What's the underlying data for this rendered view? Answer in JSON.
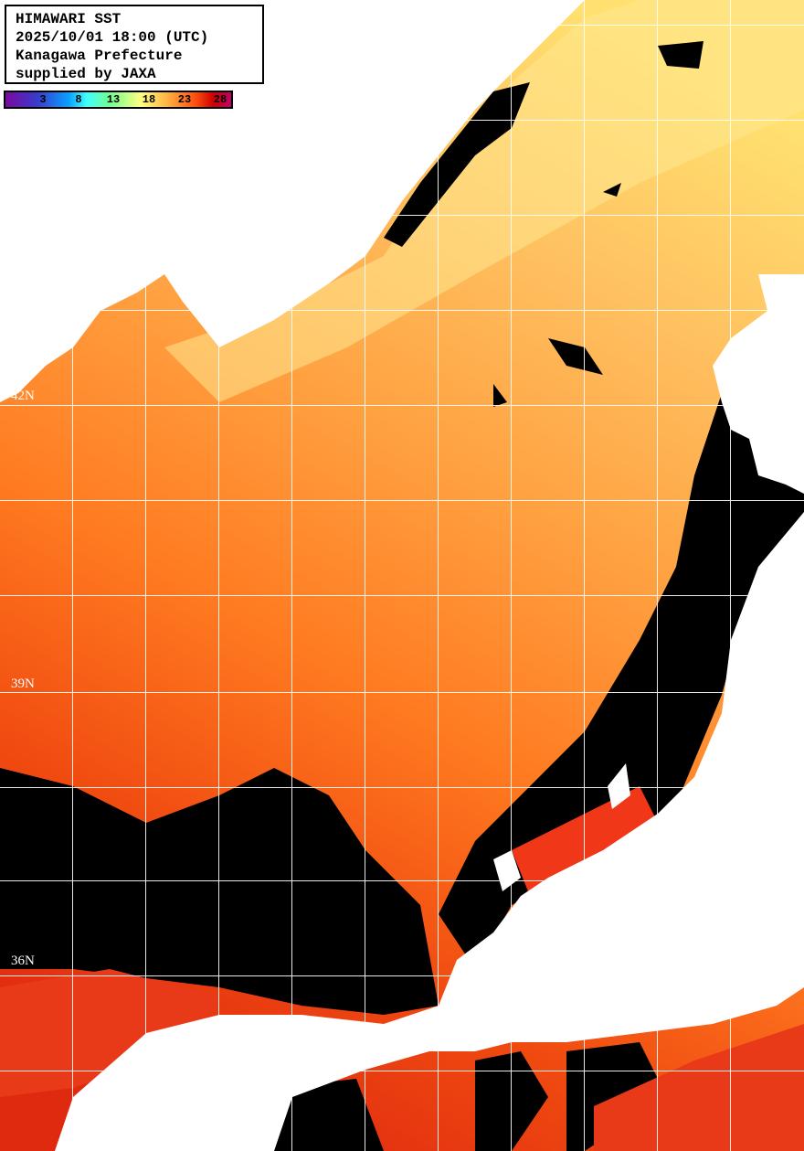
{
  "title": {
    "lines": [
      "HIMAWARI SST",
      "2025/10/01 18:00 (UTC)",
      "Kanagawa Prefecture",
      "supplied by JAXA"
    ]
  },
  "colorbar": {
    "ticks": [
      "3",
      "8",
      "13",
      "18",
      "23",
      "28"
    ],
    "colors": [
      "#7a0aa0",
      "#0aa0ff",
      "#70ff90",
      "#ffff80",
      "#ffb040",
      "#d00000",
      "#c0006a"
    ]
  },
  "latitude_labels": [
    "42N",
    "39N",
    "36N"
  ],
  "colors": {
    "land": "#ffffff",
    "cloud": "#000000",
    "grid": "#ffffff"
  }
}
